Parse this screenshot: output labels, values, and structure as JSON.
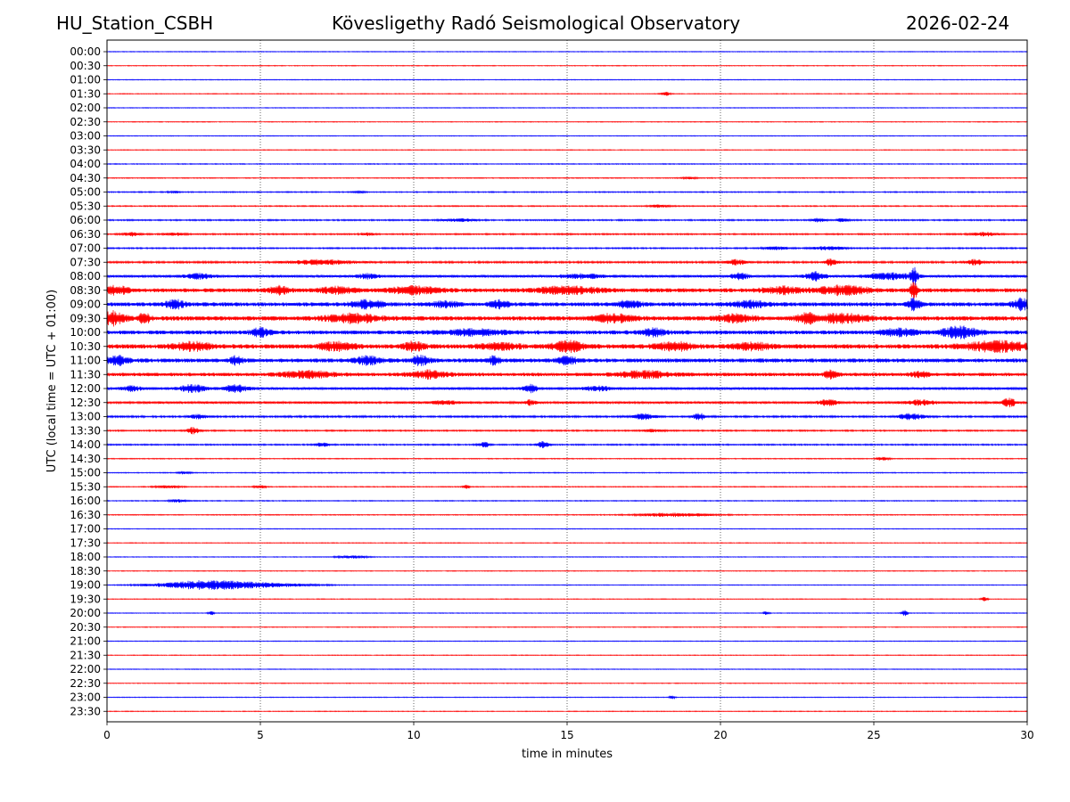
{
  "header": {
    "station": "HU_Station_CSBH",
    "title": "Kövesligethy Radó Seismological Observatory",
    "date": "2026-02-24"
  },
  "chart_data": {
    "type": "helicorder",
    "title": "Kövesligethy Radó Seismological Observatory",
    "xlabel": "time in minutes",
    "ylabel": "UTC (local time = UTC + 01:00)",
    "xlim": [
      0,
      30
    ],
    "x_ticks": [
      0,
      5,
      10,
      15,
      20,
      25,
      30
    ],
    "grid": "vertical dotted lines at 5-minute intervals",
    "colors": {
      "even_rows": "#0000ff",
      "odd_rows": "#ff0000"
    },
    "rows": [
      {
        "label": "00:00",
        "level": 0.08,
        "events": []
      },
      {
        "label": "00:30",
        "level": 0.08,
        "events": []
      },
      {
        "label": "01:00",
        "level": 0.08,
        "events": []
      },
      {
        "label": "01:30",
        "level": 0.08,
        "events": [
          [
            18.2,
            0.15,
            0.4
          ]
        ]
      },
      {
        "label": "02:00",
        "level": 0.08,
        "events": []
      },
      {
        "label": "02:30",
        "level": 0.08,
        "events": []
      },
      {
        "label": "03:00",
        "level": 0.08,
        "events": []
      },
      {
        "label": "03:30",
        "level": 0.08,
        "events": []
      },
      {
        "label": "04:00",
        "level": 0.1,
        "events": []
      },
      {
        "label": "04:30",
        "level": 0.1,
        "events": [
          [
            19.0,
            0.3,
            0.2
          ]
        ]
      },
      {
        "label": "05:00",
        "level": 0.12,
        "events": [
          [
            2.2,
            0.2,
            0.2
          ],
          [
            8.2,
            0.2,
            0.2
          ]
        ]
      },
      {
        "label": "05:30",
        "level": 0.12,
        "events": [
          [
            18.0,
            0.3,
            0.3
          ]
        ]
      },
      {
        "label": "06:00",
        "level": 0.15,
        "events": [
          [
            11.5,
            0.5,
            0.3
          ],
          [
            23.2,
            0.2,
            0.4
          ],
          [
            24.0,
            0.2,
            0.4
          ]
        ]
      },
      {
        "label": "06:30",
        "level": 0.15,
        "events": [
          [
            0.8,
            0.3,
            0.4
          ],
          [
            2.2,
            0.3,
            0.3
          ],
          [
            8.5,
            0.2,
            0.3
          ],
          [
            28.6,
            0.4,
            0.4
          ]
        ]
      },
      {
        "label": "07:00",
        "level": 0.15,
        "events": [
          [
            21.8,
            0.4,
            0.3
          ],
          [
            23.5,
            0.5,
            0.4
          ]
        ]
      },
      {
        "label": "07:30",
        "level": 0.2,
        "events": [
          [
            7.0,
            1.0,
            0.5
          ],
          [
            20.5,
            0.3,
            0.6
          ],
          [
            23.6,
            0.2,
            0.7
          ],
          [
            28.3,
            0.3,
            0.6
          ]
        ]
      },
      {
        "label": "08:00",
        "level": 0.3,
        "events": [
          [
            3.0,
            0.4,
            0.5
          ],
          [
            8.5,
            0.3,
            0.5
          ],
          [
            15.5,
            0.8,
            0.4
          ],
          [
            20.6,
            0.3,
            0.6
          ],
          [
            23.1,
            0.3,
            0.9
          ],
          [
            25.5,
            0.8,
            0.6
          ],
          [
            26.3,
            0.1,
            2.0
          ]
        ]
      },
      {
        "label": "08:30",
        "level": 0.45,
        "events": [
          [
            0.3,
            0.4,
            0.8
          ],
          [
            5.6,
            0.3,
            0.8
          ],
          [
            7.5,
            0.6,
            0.6
          ],
          [
            10.0,
            0.8,
            0.7
          ],
          [
            15.0,
            1.0,
            0.7
          ],
          [
            22.0,
            0.6,
            0.7
          ],
          [
            24.0,
            0.8,
            0.9
          ],
          [
            26.3,
            0.1,
            2.0
          ]
        ]
      },
      {
        "label": "09:00",
        "level": 0.45,
        "events": [
          [
            2.2,
            0.3,
            0.9
          ],
          [
            8.5,
            0.5,
            0.8
          ],
          [
            11.0,
            0.4,
            0.6
          ],
          [
            12.8,
            0.3,
            0.7
          ],
          [
            17.0,
            0.4,
            0.7
          ],
          [
            21.0,
            0.6,
            0.6
          ],
          [
            26.3,
            0.2,
            1.2
          ],
          [
            29.8,
            0.3,
            1.1
          ]
        ]
      },
      {
        "label": "09:30",
        "level": 0.5,
        "events": [
          [
            0.2,
            0.4,
            1.4
          ],
          [
            1.2,
            0.2,
            1.0
          ],
          [
            8.0,
            0.8,
            0.9
          ],
          [
            16.5,
            0.6,
            0.8
          ],
          [
            20.5,
            0.6,
            0.7
          ],
          [
            22.8,
            0.3,
            1.0
          ],
          [
            24.0,
            0.8,
            0.9
          ]
        ]
      },
      {
        "label": "10:00",
        "level": 0.45,
        "events": [
          [
            5.0,
            0.3,
            0.8
          ],
          [
            12.0,
            1.0,
            0.6
          ],
          [
            17.8,
            0.4,
            0.7
          ],
          [
            25.8,
            0.6,
            0.7
          ],
          [
            27.8,
            0.6,
            1.2
          ]
        ]
      },
      {
        "label": "10:30",
        "level": 0.5,
        "events": [
          [
            2.8,
            0.6,
            0.8
          ],
          [
            7.5,
            0.6,
            0.8
          ],
          [
            10.0,
            0.3,
            1.0
          ],
          [
            12.8,
            0.6,
            0.7
          ],
          [
            15.0,
            0.5,
            1.1
          ],
          [
            18.5,
            0.6,
            0.8
          ],
          [
            21.0,
            0.6,
            0.7
          ],
          [
            29.0,
            1.0,
            1.0
          ]
        ]
      },
      {
        "label": "11:00",
        "level": 0.45,
        "events": [
          [
            0.3,
            0.4,
            0.9
          ],
          [
            4.2,
            0.2,
            0.8
          ],
          [
            8.5,
            0.4,
            0.8
          ],
          [
            10.2,
            0.3,
            0.9
          ],
          [
            12.6,
            0.2,
            0.8
          ],
          [
            15.0,
            0.3,
            0.8
          ]
        ]
      },
      {
        "label": "11:30",
        "level": 0.4,
        "events": [
          [
            6.5,
            0.8,
            0.7
          ],
          [
            10.5,
            0.6,
            0.8
          ],
          [
            17.5,
            0.8,
            0.7
          ],
          [
            23.6,
            0.2,
            1.0
          ],
          [
            26.5,
            0.3,
            0.5
          ]
        ]
      },
      {
        "label": "12:00",
        "level": 0.3,
        "events": [
          [
            0.8,
            0.3,
            0.5
          ],
          [
            2.8,
            0.4,
            0.8
          ],
          [
            4.2,
            0.4,
            0.7
          ],
          [
            13.8,
            0.2,
            0.8
          ],
          [
            16.0,
            0.4,
            0.5
          ]
        ]
      },
      {
        "label": "12:30",
        "level": 0.25,
        "events": [
          [
            11.0,
            0.4,
            0.4
          ],
          [
            13.8,
            0.2,
            0.5
          ],
          [
            23.5,
            0.3,
            0.6
          ],
          [
            26.5,
            0.5,
            0.5
          ],
          [
            29.4,
            0.2,
            1.0
          ]
        ]
      },
      {
        "label": "13:00",
        "level": 0.2,
        "events": [
          [
            3.0,
            0.3,
            0.4
          ],
          [
            17.5,
            0.4,
            0.6
          ],
          [
            19.3,
            0.2,
            0.7
          ],
          [
            26.2,
            0.4,
            0.7
          ]
        ]
      },
      {
        "label": "13:30",
        "level": 0.15,
        "events": [
          [
            2.8,
            0.2,
            0.7
          ],
          [
            17.8,
            0.3,
            0.3
          ]
        ]
      },
      {
        "label": "14:00",
        "level": 0.15,
        "events": [
          [
            7.0,
            0.2,
            0.4
          ],
          [
            12.3,
            0.2,
            0.5
          ],
          [
            14.2,
            0.2,
            0.7
          ]
        ]
      },
      {
        "label": "14:30",
        "level": 0.1,
        "events": [
          [
            25.3,
            0.2,
            0.4
          ]
        ]
      },
      {
        "label": "15:00",
        "level": 0.1,
        "events": [
          [
            2.5,
            0.2,
            0.3
          ]
        ]
      },
      {
        "label": "15:30",
        "level": 0.1,
        "events": [
          [
            2.0,
            0.4,
            0.3
          ],
          [
            5.0,
            0.2,
            0.3
          ],
          [
            11.7,
            0.1,
            0.5
          ]
        ]
      },
      {
        "label": "16:00",
        "level": 0.1,
        "events": [
          [
            2.3,
            0.3,
            0.3
          ]
        ]
      },
      {
        "label": "16:30",
        "level": 0.1,
        "events": [
          [
            18.5,
            1.2,
            0.4
          ]
        ]
      },
      {
        "label": "17:00",
        "level": 0.08,
        "events": []
      },
      {
        "label": "17:30",
        "level": 0.08,
        "events": []
      },
      {
        "label": "18:00",
        "level": 0.08,
        "events": [
          [
            8.0,
            0.5,
            0.3
          ]
        ]
      },
      {
        "label": "18:30",
        "level": 0.08,
        "events": []
      },
      {
        "label": "19:00",
        "level": 0.08,
        "events": [
          [
            3.3,
            1.6,
            1.0
          ],
          [
            5.5,
            1.5,
            0.3
          ]
        ]
      },
      {
        "label": "19:30",
        "level": 0.08,
        "events": [
          [
            28.6,
            0.1,
            0.5
          ]
        ]
      },
      {
        "label": "20:00",
        "level": 0.08,
        "events": [
          [
            3.4,
            0.1,
            0.4
          ],
          [
            21.5,
            0.1,
            0.4
          ],
          [
            26.0,
            0.1,
            0.6
          ]
        ]
      },
      {
        "label": "20:30",
        "level": 0.08,
        "events": []
      },
      {
        "label": "21:00",
        "level": 0.08,
        "events": []
      },
      {
        "label": "21:30",
        "level": 0.08,
        "events": []
      },
      {
        "label": "22:00",
        "level": 0.08,
        "events": []
      },
      {
        "label": "22:30",
        "level": 0.08,
        "events": []
      },
      {
        "label": "23:00",
        "level": 0.08,
        "events": [
          [
            18.4,
            0.1,
            0.4
          ]
        ]
      },
      {
        "label": "23:30",
        "level": 0.08,
        "events": []
      }
    ]
  }
}
